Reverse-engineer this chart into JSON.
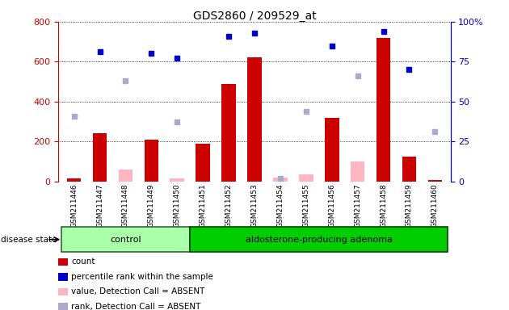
{
  "title": "GDS2860 / 209529_at",
  "samples": [
    "GSM211446",
    "GSM211447",
    "GSM211448",
    "GSM211449",
    "GSM211450",
    "GSM211451",
    "GSM211452",
    "GSM211453",
    "GSM211454",
    "GSM211455",
    "GSM211456",
    "GSM211457",
    "GSM211458",
    "GSM211459",
    "GSM211460"
  ],
  "count_red": [
    15,
    240,
    0,
    210,
    0,
    190,
    490,
    620,
    0,
    0,
    320,
    0,
    720,
    125,
    5
  ],
  "count_pink": [
    15,
    0,
    60,
    0,
    15,
    0,
    0,
    0,
    20,
    35,
    0,
    100,
    0,
    0,
    5
  ],
  "rank_blue_pct": [
    0,
    81,
    0,
    80,
    77,
    0,
    91,
    93,
    0,
    0,
    85,
    0,
    94,
    70,
    0
  ],
  "rank_lavender_pct": [
    41,
    0,
    63,
    0,
    37,
    0,
    0,
    0,
    2,
    44,
    0,
    66,
    0,
    0,
    31
  ],
  "control_count": 5,
  "adenoma_count": 10,
  "ylim_left": [
    0,
    800
  ],
  "ylim_right": [
    0,
    100
  ],
  "yticks_left": [
    0,
    200,
    400,
    600,
    800
  ],
  "yticks_right": [
    0,
    25,
    50,
    75,
    100
  ],
  "bar_color_red": "#CC0000",
  "bar_color_pink": "#FFB6C1",
  "dot_color_blue": "#0000CC",
  "dot_color_lavender": "#AAAACC",
  "control_bg": "#AAFFAA",
  "adenoma_bg": "#00CC00",
  "tick_bg": "#CCCCCC",
  "legend_items": [
    "count",
    "percentile rank within the sample",
    "value, Detection Call = ABSENT",
    "rank, Detection Call = ABSENT"
  ],
  "legend_colors": [
    "#CC0000",
    "#0000CC",
    "#FFB6C1",
    "#AAAACC"
  ],
  "disease_state_label": "disease state",
  "control_label": "control",
  "adenoma_label": "aldosterone-producing adenoma"
}
